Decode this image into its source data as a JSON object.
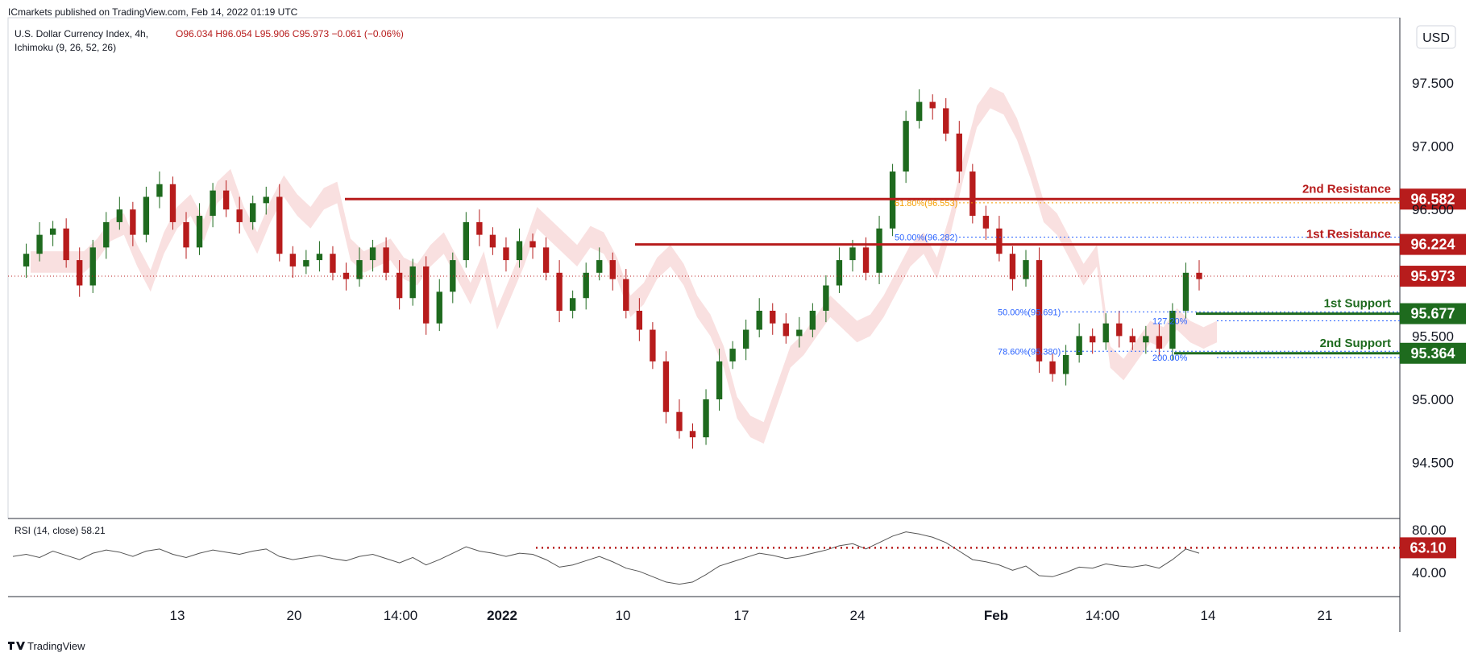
{
  "header": {
    "publisher": "ICmarkets published on TradingView.com, Feb 14, 2022 01:19 UTC"
  },
  "legend": {
    "symbol": "U.S. Dollar Currency Index, 4h,",
    "ohlc": "O96.034  H96.054  L95.906  C95.973  −0.061 (−0.06%)",
    "indicator": "Ichimoku (9, 26, 52, 26)"
  },
  "currency_badge": "USD",
  "rsi": {
    "label": "RSI (14, close)  58.21",
    "ticks": [
      "80.00",
      "40.00"
    ],
    "level": {
      "value": 63.1,
      "label": "63.10"
    }
  },
  "footer": {
    "brand": "TradingView"
  },
  "colors": {
    "up": "#1e6a1e",
    "down": "#b71c1c",
    "resistance": "#b71c1c",
    "support": "#1e6b1e",
    "fib": "#2962ff",
    "cloud_up": "#cfe9cf",
    "cloud_down": "#f7d6d6"
  },
  "chart_data": {
    "type": "candlestick",
    "timeframe": "4h",
    "y_range": [
      94.1,
      97.8
    ],
    "x_ticks": [
      "13",
      "20",
      "14:00",
      "2022",
      "10",
      "17",
      "24",
      "Feb",
      "14:00",
      "14",
      "21"
    ],
    "y_ticks": [
      "97.500",
      "97.000",
      "96.500",
      "95.500",
      "95.000",
      "94.500"
    ],
    "last_price": {
      "value": 95.973,
      "label": "95.973"
    },
    "levels": [
      {
        "name": "2nd Resistance",
        "value": 96.582,
        "label": "96.582",
        "kind": "resistance"
      },
      {
        "name": "1st Resistance",
        "value": 96.224,
        "label": "96.224",
        "kind": "resistance"
      },
      {
        "name": "1st Support",
        "value": 95.677,
        "label": "95.677",
        "kind": "support"
      },
      {
        "name": "2nd Support",
        "value": 95.364,
        "label": "95.364",
        "kind": "support"
      }
    ],
    "fib_labels": [
      {
        "label": "61.80%(96.553)",
        "value": 96.553
      },
      {
        "label": "50.00%(96.282)",
        "value": 96.282
      },
      {
        "label": "50.00%(95.691)",
        "value": 95.691
      },
      {
        "label": "127.20%",
        "value": 95.62
      },
      {
        "label": "78.60%(95.380)",
        "value": 95.38
      },
      {
        "label": "200.00%",
        "value": 95.33
      }
    ],
    "price_path": [
      96.05,
      96.15,
      96.3,
      96.35,
      96.1,
      95.9,
      96.2,
      96.4,
      96.5,
      96.3,
      96.6,
      96.7,
      96.4,
      96.2,
      96.45,
      96.65,
      96.5,
      96.4,
      96.55,
      96.6,
      96.15,
      96.05,
      96.1,
      96.15,
      96.0,
      95.95,
      96.1,
      96.2,
      96.0,
      95.8,
      96.05,
      95.6,
      95.85,
      96.1,
      96.4,
      96.3,
      96.2,
      96.1,
      96.25,
      96.2,
      96.0,
      95.7,
      95.8,
      96.0,
      96.1,
      95.95,
      95.7,
      95.55,
      95.3,
      94.9,
      94.75,
      94.7,
      95.0,
      95.3,
      95.4,
      95.55,
      95.7,
      95.6,
      95.5,
      95.55,
      95.7,
      95.9,
      96.1,
      96.2,
      96.0,
      96.35,
      96.8,
      97.2,
      97.35,
      97.3,
      97.1,
      96.8,
      96.45,
      96.35,
      96.15,
      95.95,
      96.1,
      95.3,
      95.2,
      95.35,
      95.5,
      95.45,
      95.6,
      95.5,
      95.45,
      95.5,
      95.4,
      95.7,
      96.0,
      95.95
    ],
    "rsi_path": [
      55,
      57,
      54,
      60,
      56,
      52,
      58,
      61,
      59,
      55,
      60,
      62,
      57,
      54,
      58,
      61,
      59,
      57,
      60,
      62,
      55,
      52,
      54,
      56,
      53,
      51,
      55,
      57,
      53,
      49,
      54,
      47,
      52,
      58,
      64,
      60,
      58,
      55,
      58,
      57,
      52,
      45,
      47,
      51,
      55,
      50,
      44,
      41,
      36,
      31,
      29,
      31,
      38,
      46,
      50,
      54,
      58,
      56,
      53,
      55,
      58,
      61,
      65,
      67,
      62,
      68,
      74,
      78,
      76,
      73,
      68,
      60,
      52,
      50,
      47,
      42,
      46,
      37,
      36,
      40,
      45,
      44,
      48,
      46,
      45,
      47,
      44,
      52,
      62,
      58
    ]
  }
}
